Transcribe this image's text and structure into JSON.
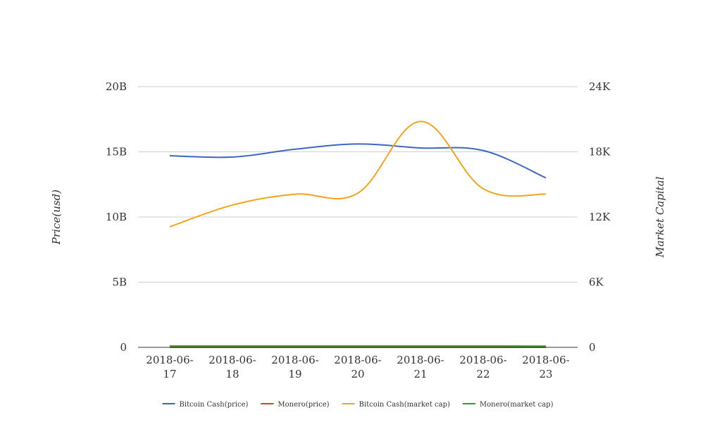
{
  "chart_data": {
    "type": "line",
    "title": "",
    "categories": [
      "2018-06-17",
      "2018-06-18",
      "2018-06-19",
      "2018-06-20",
      "2018-06-21",
      "2018-06-22",
      "2018-06-23"
    ],
    "category_label_lines": [
      [
        "2018-06-",
        "17"
      ],
      [
        "2018-06-",
        "18"
      ],
      [
        "2018-06-",
        "19"
      ],
      [
        "2018-06-",
        "20"
      ],
      [
        "2018-06-",
        "21"
      ],
      [
        "2018-06-",
        "22"
      ],
      [
        "2018-06-",
        "23"
      ]
    ],
    "left_axis": {
      "title": "Price(usd)",
      "ticks": [
        "0",
        "5B",
        "10B",
        "15B",
        "20B"
      ],
      "range": [
        0,
        20000000000
      ]
    },
    "right_axis": {
      "title": "Market Capital",
      "ticks": [
        "0",
        "6K",
        "12K",
        "18K",
        "24K"
      ],
      "range": [
        0,
        24000
      ]
    },
    "grid": true,
    "legend_position": "bottom",
    "series": [
      {
        "name": "Bitcoin Cash(price)",
        "axis": "left",
        "color": "#3b68c0",
        "values": [
          14700000000,
          14600000000,
          15200000000,
          15600000000,
          15300000000,
          15100000000,
          13000000000
        ]
      },
      {
        "name": "Monero(price)",
        "axis": "left",
        "color": "#d9401c",
        "values": [
          0,
          0,
          0,
          0,
          0,
          0,
          0
        ]
      },
      {
        "name": "Bitcoin Cash(market cap)",
        "axis": "right",
        "color": "#f4a41c",
        "values": [
          11100,
          13100,
          14100,
          14200,
          20800,
          14600,
          14100
        ]
      },
      {
        "name": "Monero(market cap)",
        "axis": "right",
        "color": "#2aa020",
        "values": [
          120,
          120,
          120,
          120,
          120,
          120,
          110
        ]
      }
    ]
  }
}
